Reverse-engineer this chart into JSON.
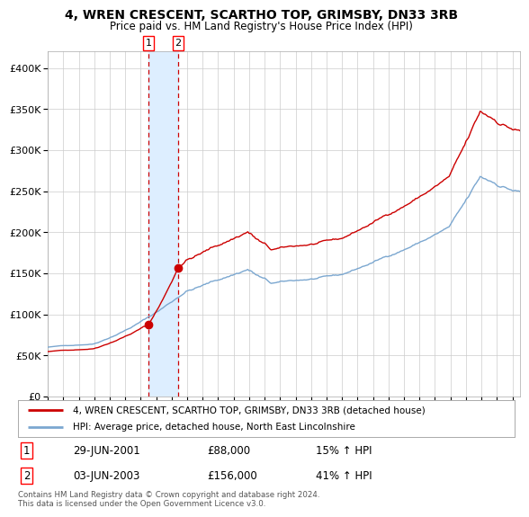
{
  "title": "4, WREN CRESCENT, SCARTHO TOP, GRIMSBY, DN33 3RB",
  "subtitle": "Price paid vs. HM Land Registry's House Price Index (HPI)",
  "legend_line1": "4, WREN CRESCENT, SCARTHO TOP, GRIMSBY, DN33 3RB (detached house)",
  "legend_line2": "HPI: Average price, detached house, North East Lincolnshire",
  "sale1_date": "29-JUN-2001",
  "sale1_price": 88000,
  "sale1_label": "15% ↑ HPI",
  "sale2_date": "03-JUN-2003",
  "sale2_price": 156000,
  "sale2_label": "41% ↑ HPI",
  "footnote": "Contains HM Land Registry data © Crown copyright and database right 2024.\nThis data is licensed under the Open Government Licence v3.0.",
  "hpi_color": "#7ba7d0",
  "property_color": "#cc0000",
  "sale_marker_color": "#cc0000",
  "vspan_color": "#ddeeff",
  "vline_color": "#cc0000",
  "grid_color": "#cccccc",
  "background_color": "#ffffff",
  "ylim": [
    0,
    420000
  ],
  "yticks": [
    0,
    50000,
    100000,
    150000,
    200000,
    250000,
    300000,
    350000,
    400000
  ],
  "ytick_labels": [
    "£0",
    "£50K",
    "£100K",
    "£150K",
    "£200K",
    "£250K",
    "£300K",
    "£350K",
    "£400K"
  ],
  "sale1_year": 2001.49,
  "sale2_year": 2003.42,
  "xstart": 1995,
  "xend": 2025.5
}
